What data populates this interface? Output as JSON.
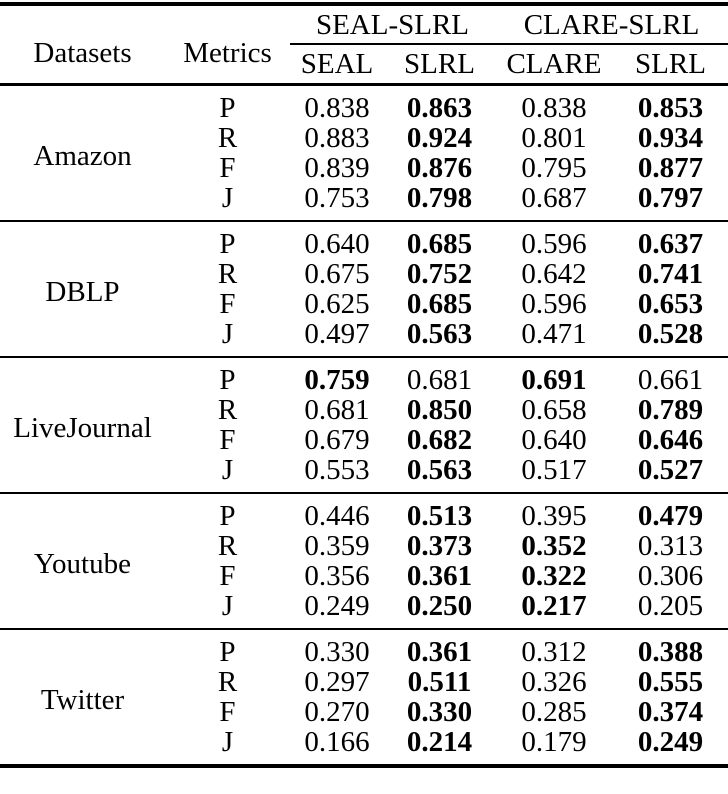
{
  "header": {
    "datasets": "Datasets",
    "metrics": "Metrics",
    "groups": [
      "SEAL-SLRL",
      "CLARE-SLRL"
    ],
    "subcolumns": [
      "SEAL",
      "SLRL",
      "CLARE",
      "SLRL"
    ]
  },
  "groups": [
    {
      "name": "Amazon",
      "rows": [
        {
          "metric": "P",
          "values": [
            "0.838",
            "0.863",
            "0.838",
            "0.853"
          ],
          "bold": [
            false,
            true,
            false,
            true
          ]
        },
        {
          "metric": "R",
          "values": [
            "0.883",
            "0.924",
            "0.801",
            "0.934"
          ],
          "bold": [
            false,
            true,
            false,
            true
          ]
        },
        {
          "metric": "F",
          "values": [
            "0.839",
            "0.876",
            "0.795",
            "0.877"
          ],
          "bold": [
            false,
            true,
            false,
            true
          ]
        },
        {
          "metric": "J",
          "values": [
            "0.753",
            "0.798",
            "0.687",
            "0.797"
          ],
          "bold": [
            false,
            true,
            false,
            true
          ]
        }
      ]
    },
    {
      "name": "DBLP",
      "rows": [
        {
          "metric": "P",
          "values": [
            "0.640",
            "0.685",
            "0.596",
            "0.637"
          ],
          "bold": [
            false,
            true,
            false,
            true
          ]
        },
        {
          "metric": "R",
          "values": [
            "0.675",
            "0.752",
            "0.642",
            "0.741"
          ],
          "bold": [
            false,
            true,
            false,
            true
          ]
        },
        {
          "metric": "F",
          "values": [
            "0.625",
            "0.685",
            "0.596",
            "0.653"
          ],
          "bold": [
            false,
            true,
            false,
            true
          ]
        },
        {
          "metric": "J",
          "values": [
            "0.497",
            "0.563",
            "0.471",
            "0.528"
          ],
          "bold": [
            false,
            true,
            false,
            true
          ]
        }
      ]
    },
    {
      "name": "LiveJournal",
      "rows": [
        {
          "metric": "P",
          "values": [
            "0.759",
            "0.681",
            "0.691",
            "0.661"
          ],
          "bold": [
            true,
            false,
            true,
            false
          ]
        },
        {
          "metric": "R",
          "values": [
            "0.681",
            "0.850",
            "0.658",
            "0.789"
          ],
          "bold": [
            false,
            true,
            false,
            true
          ]
        },
        {
          "metric": "F",
          "values": [
            "0.679",
            "0.682",
            "0.640",
            "0.646"
          ],
          "bold": [
            false,
            true,
            false,
            true
          ]
        },
        {
          "metric": "J",
          "values": [
            "0.553",
            "0.563",
            "0.517",
            "0.527"
          ],
          "bold": [
            false,
            true,
            false,
            true
          ]
        }
      ]
    },
    {
      "name": "Youtube",
      "rows": [
        {
          "metric": "P",
          "values": [
            "0.446",
            "0.513",
            "0.395",
            "0.479"
          ],
          "bold": [
            false,
            true,
            false,
            true
          ]
        },
        {
          "metric": "R",
          "values": [
            "0.359",
            "0.373",
            "0.352",
            "0.313"
          ],
          "bold": [
            false,
            true,
            true,
            false
          ]
        },
        {
          "metric": "F",
          "values": [
            "0.356",
            "0.361",
            "0.322",
            "0.306"
          ],
          "bold": [
            false,
            true,
            true,
            false
          ]
        },
        {
          "metric": "J",
          "values": [
            "0.249",
            "0.250",
            "0.217",
            "0.205"
          ],
          "bold": [
            false,
            true,
            true,
            false
          ]
        }
      ]
    },
    {
      "name": "Twitter",
      "rows": [
        {
          "metric": "P",
          "values": [
            "0.330",
            "0.361",
            "0.312",
            "0.388"
          ],
          "bold": [
            false,
            true,
            false,
            true
          ]
        },
        {
          "metric": "R",
          "values": [
            "0.297",
            "0.511",
            "0.326",
            "0.555"
          ],
          "bold": [
            false,
            true,
            false,
            true
          ]
        },
        {
          "metric": "F",
          "values": [
            "0.270",
            "0.330",
            "0.285",
            "0.374"
          ],
          "bold": [
            false,
            true,
            false,
            true
          ]
        },
        {
          "metric": "J",
          "values": [
            "0.166",
            "0.214",
            "0.179",
            "0.249"
          ],
          "bold": [
            false,
            true,
            false,
            true
          ]
        }
      ]
    }
  ],
  "colors": {
    "text": "#000000",
    "rule": "#000000",
    "background": "#ffffff"
  }
}
